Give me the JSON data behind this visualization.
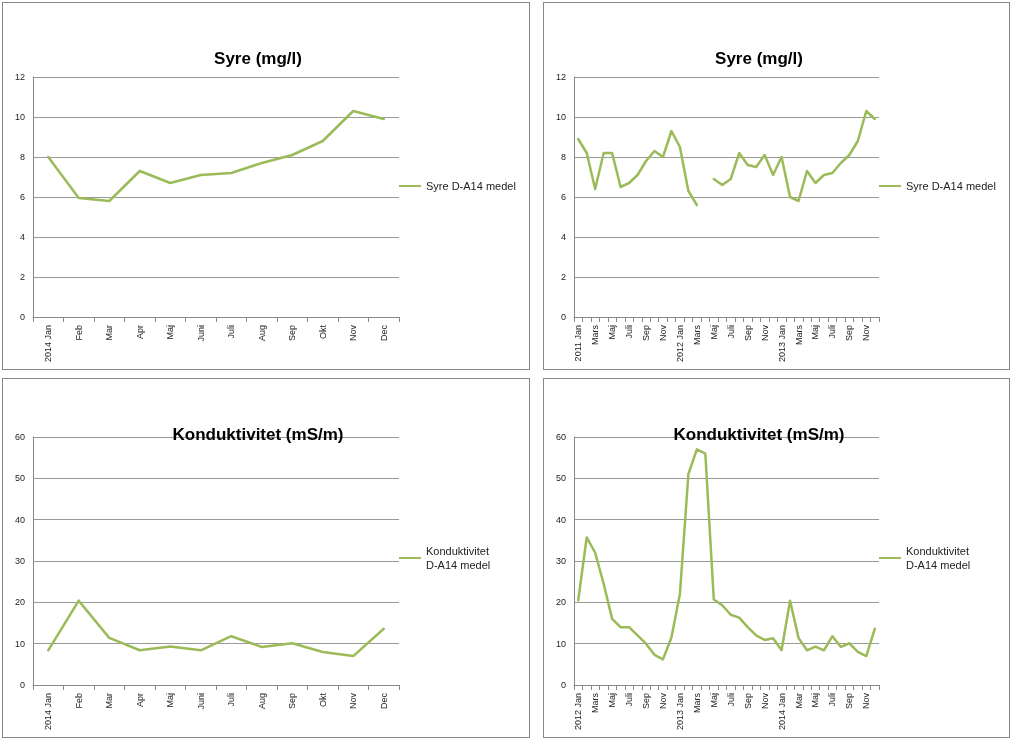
{
  "chart_data": [
    {
      "type": "line",
      "title": "Syre (mg/l)",
      "categories": [
        "2014 Jan",
        "Feb",
        "Mar",
        "Apr",
        "Maj",
        "Juni",
        "Juli",
        "Aug",
        "Sep",
        "Okt",
        "Nov",
        "Dec"
      ],
      "series": [
        {
          "name": "Syre D-A14 medel",
          "color": "#9bbb59",
          "values": [
            8.0,
            5.95,
            5.8,
            7.3,
            6.7,
            7.1,
            7.2,
            7.7,
            8.1,
            8.8,
            10.3,
            9.9
          ]
        }
      ],
      "ylim": [
        0,
        12
      ],
      "yticks": [
        0,
        2,
        4,
        6,
        8,
        10,
        12
      ],
      "grid": "y",
      "legend": "right",
      "marker": "none"
    },
    {
      "type": "line",
      "title": "Syre (mg/l)",
      "categories": [
        "2011 Jan",
        null,
        "Mars",
        null,
        "Maj",
        null,
        "Juli",
        null,
        "Sep",
        null,
        "Nov",
        null,
        "2012 Jan",
        null,
        "Mars",
        null,
        "Maj",
        null,
        "Juli",
        null,
        "Sep",
        null,
        "Nov",
        null,
        "2013 Jan",
        null,
        "Mars",
        null,
        "Maj",
        null,
        "Juli",
        null,
        "Sep",
        null,
        "Nov",
        null
      ],
      "series": [
        {
          "name": "Syre D-A14 medel",
          "color": "#9bbb59",
          "values": [
            8.9,
            8.2,
            6.4,
            8.2,
            8.2,
            6.5,
            6.7,
            7.1,
            7.8,
            8.3,
            8.0,
            9.3,
            8.5,
            6.3,
            5.6,
            null,
            6.9,
            6.6,
            6.9,
            8.2,
            7.6,
            7.5,
            8.1,
            7.1,
            8.0,
            6.0,
            5.8,
            7.3,
            6.7,
            7.1,
            7.2,
            7.7,
            8.1,
            8.8,
            10.3,
            9.9
          ]
        }
      ],
      "ylim": [
        0,
        12
      ],
      "yticks": [
        0,
        2,
        4,
        6,
        8,
        10,
        12
      ],
      "grid": "y",
      "legend": "right",
      "marker": "none"
    },
    {
      "type": "line",
      "title": "Konduktivitet (mS/m)",
      "categories": [
        "2014 Jan",
        "Feb",
        "Mar",
        "Apr",
        "Maj",
        "Juni",
        "Juli",
        "Aug",
        "Sep",
        "Okt",
        "Nov",
        "Dec"
      ],
      "series": [
        {
          "name": "Konduktivitet D-A14 medel",
          "color": "#9bbb59",
          "values": [
            8.4,
            20.4,
            11.4,
            8.4,
            9.3,
            8.4,
            11.8,
            9.2,
            10.1,
            8,
            7,
            13.6
          ]
        }
      ],
      "ylim": [
        0,
        60
      ],
      "yticks": [
        0,
        10,
        20,
        30,
        40,
        50,
        60
      ],
      "grid": "y",
      "legend": "right",
      "marker": "none"
    },
    {
      "type": "line",
      "title": "Konduktivitet (mS/m)",
      "categories": [
        "2012 Jan",
        null,
        "Mars",
        null,
        "Maj",
        null,
        "Juli",
        null,
        "Sep",
        null,
        "Nov",
        null,
        "2013 Jan",
        null,
        "Mars",
        null,
        "Maj",
        null,
        "Juli",
        null,
        "Sep",
        null,
        "Nov",
        null,
        "2014 Jan",
        null,
        "Mar",
        null,
        "Maj",
        null,
        "Juli",
        null,
        "Sep",
        null,
        "Nov",
        null
      ],
      "series": [
        {
          "name": "Konduktivitet D-A14 medel",
          "color": "#9bbb59",
          "values": [
            20.5,
            35.7,
            32,
            24.5,
            16,
            14,
            14,
            12,
            10,
            7.3,
            6.2,
            11.5,
            22,
            51,
            57,
            56,
            20.7,
            19.3,
            17,
            16.3,
            14,
            12,
            10.9,
            11.3,
            8.4,
            20.4,
            11.4,
            8.4,
            9.3,
            8.4,
            11.8,
            9.2,
            10.1,
            8,
            7,
            13.6
          ]
        }
      ],
      "ylim": [
        0,
        60
      ],
      "yticks": [
        0,
        10,
        20,
        30,
        40,
        50,
        60
      ],
      "grid": "y",
      "legend": "right",
      "marker": "none"
    }
  ]
}
